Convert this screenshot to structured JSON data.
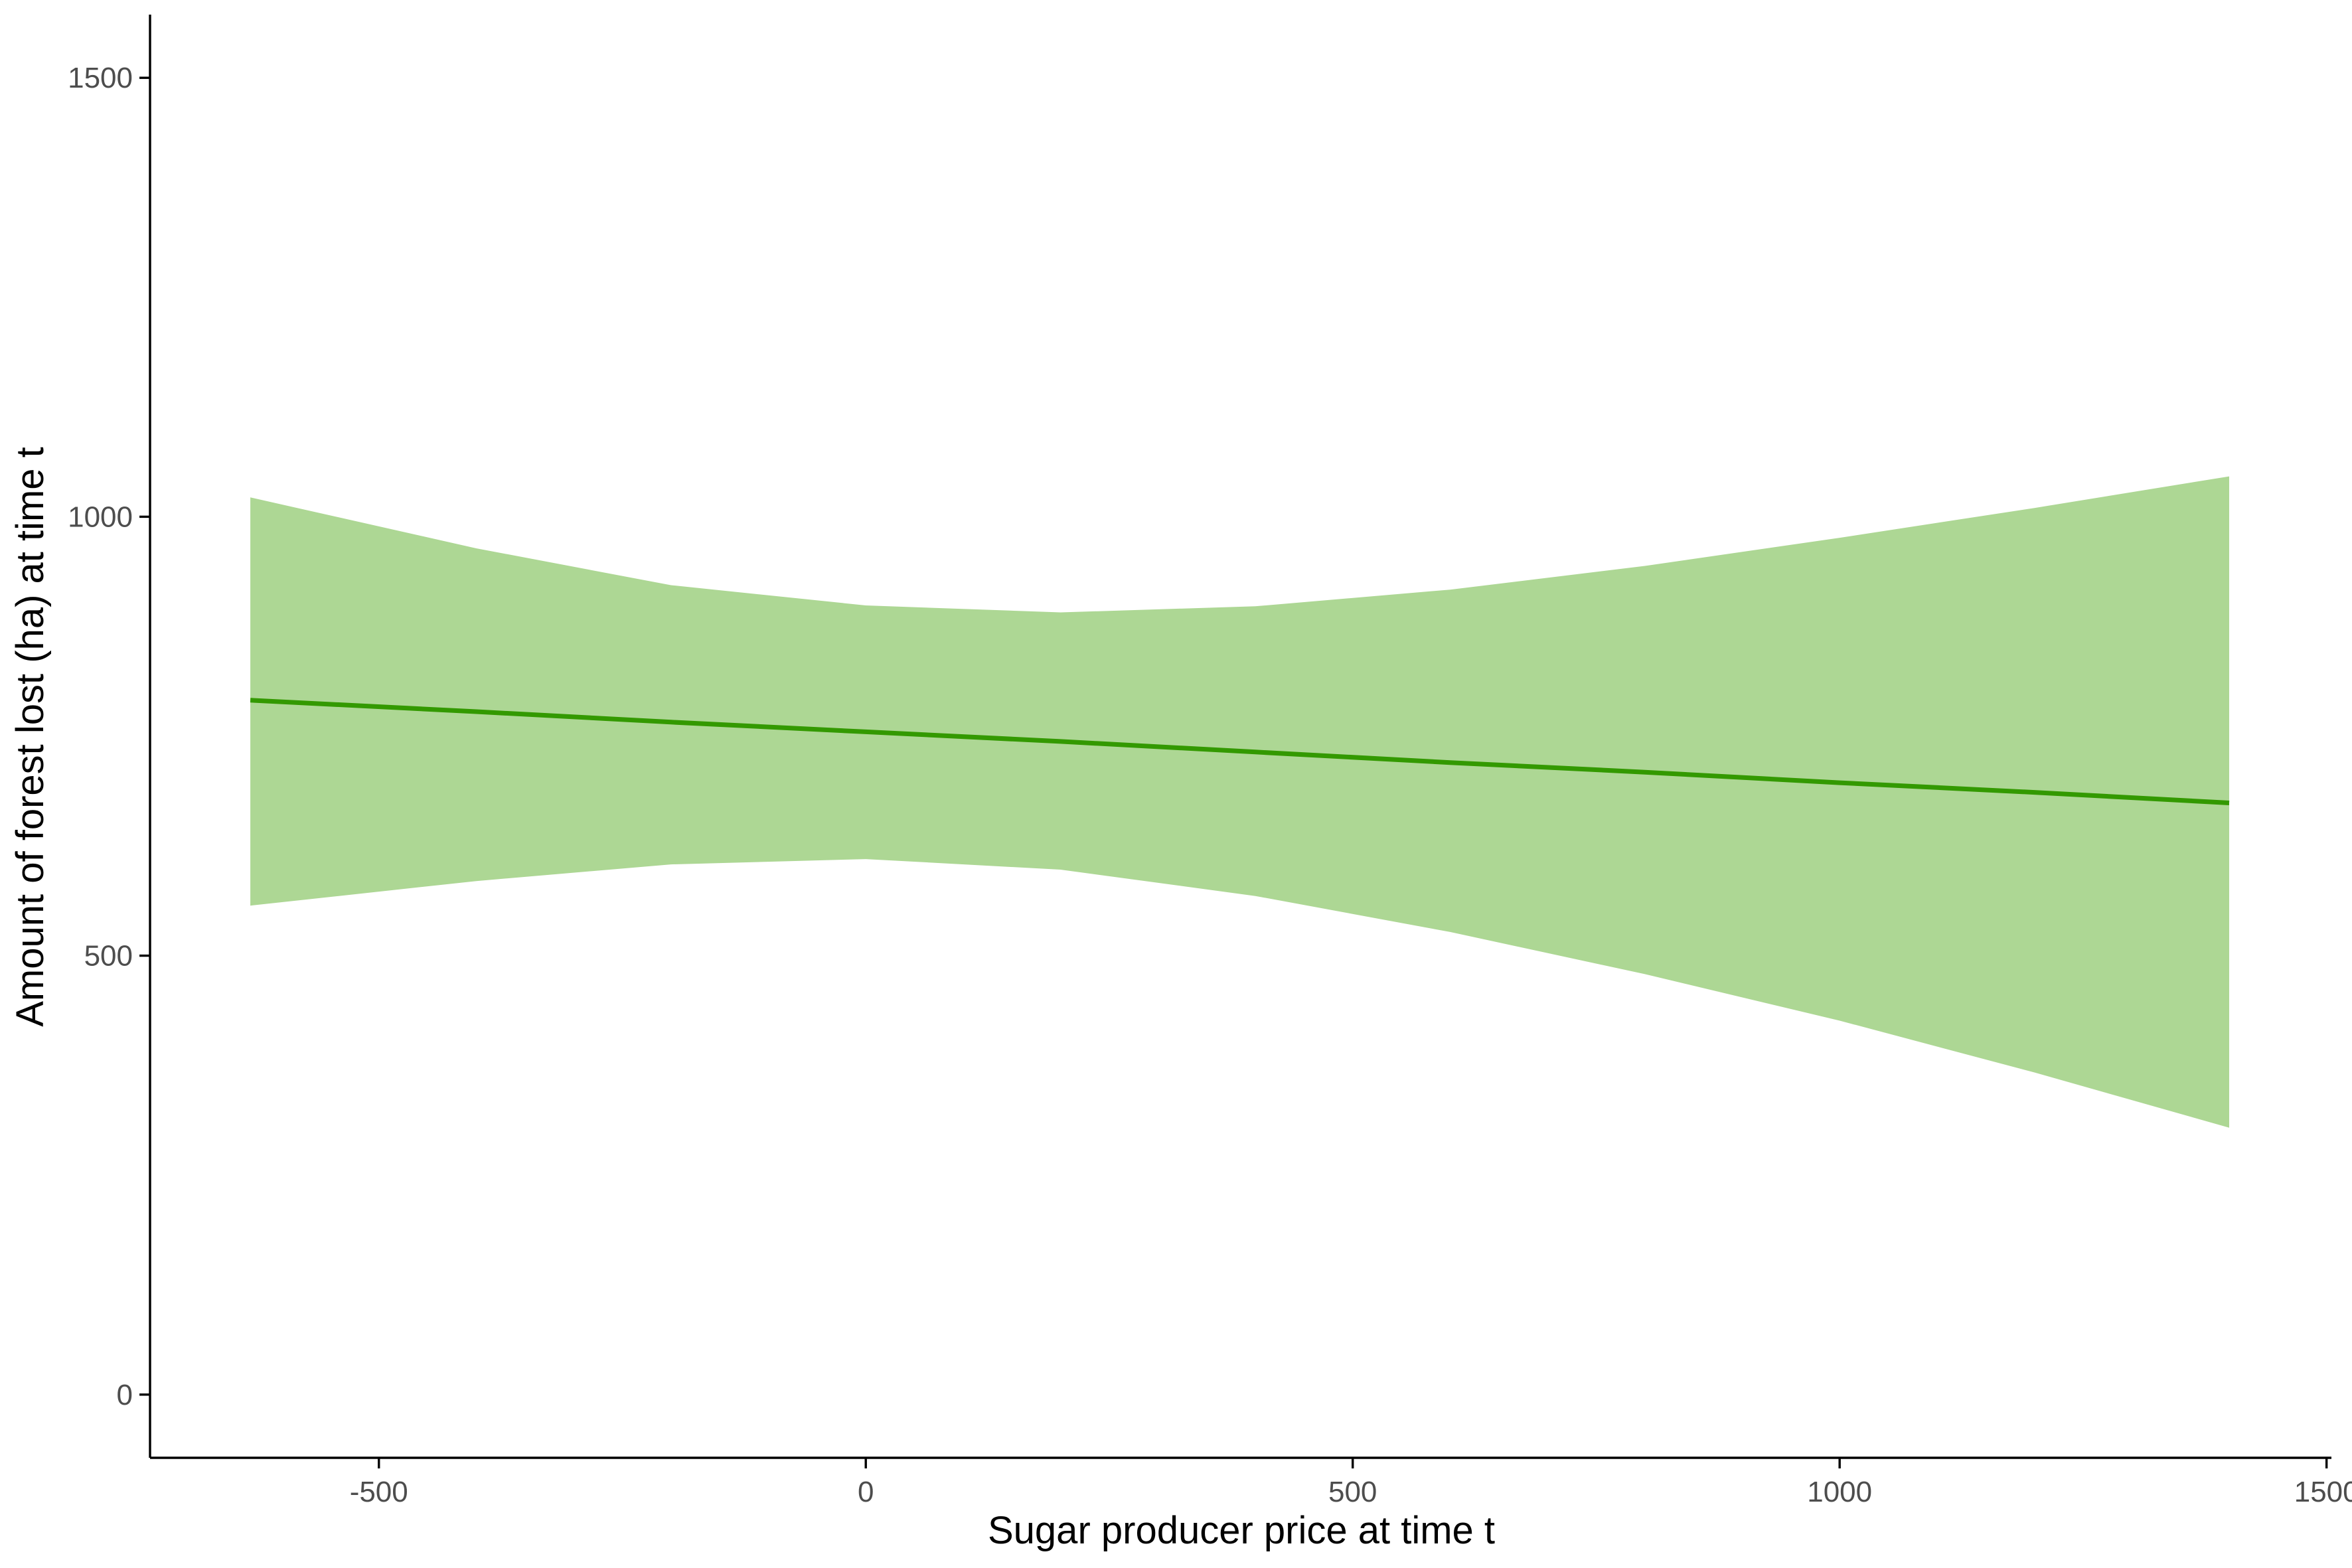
{
  "chart_data": {
    "type": "line",
    "title": "",
    "xlabel": "Sugar producer price at time t",
    "ylabel": "Amount of forest lost (ha) at time t",
    "xlim": [
      -735,
      1505
    ],
    "ylim": [
      -72,
      1572
    ],
    "x_ticks": [
      -500,
      0,
      500,
      1000,
      1500
    ],
    "y_ticks": [
      0,
      500,
      1000,
      1500
    ],
    "x_tick_labels": [
      "-500",
      "0",
      "500",
      "1000",
      "1500"
    ],
    "y_tick_labels": [
      "0",
      "500",
      "1000",
      "1500"
    ],
    "grid": false,
    "colors": {
      "line": "#339900",
      "band": "#add794"
    },
    "series": [
      {
        "x": [
          -632,
          -400,
          -200,
          0,
          200,
          400,
          600,
          800,
          1000,
          1200,
          1400
        ],
        "y": [
          791,
          778,
          766,
          755,
          744,
          732,
          720,
          709,
          697,
          686,
          674
        ],
        "lower": [
          557,
          585,
          604,
          610,
          598,
          568,
          527,
          479,
          426,
          367,
          304
        ],
        "upper": [
          1022,
          964,
          922,
          899,
          891,
          898,
          917,
          944,
          976,
          1010,
          1046
        ]
      }
    ]
  }
}
